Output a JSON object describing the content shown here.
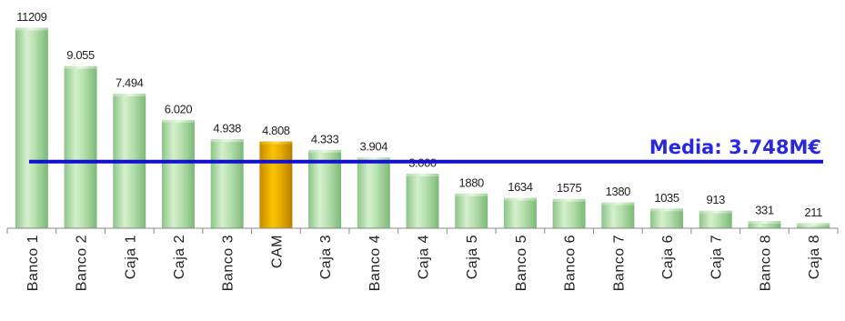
{
  "chart_data": {
    "type": "bar",
    "categories": [
      "Banco 1",
      "Banco 2",
      "Caja 1",
      "Caja 2",
      "Banco 3",
      "CAM",
      "Caja 3",
      "Banco 4",
      "Caja 4",
      "Caja 5",
      "Banco 5",
      "Banco 6",
      "Banco 7",
      "Caja 6",
      "Caja 7",
      "Banco 8",
      "Caja 8"
    ],
    "values": [
      11209,
      9055,
      7494,
      6020,
      4938,
      4808,
      4333,
      3904,
      3000,
      1880,
      1634,
      1575,
      1380,
      1035,
      913,
      331,
      211
    ],
    "value_labels": [
      "11209",
      "9.055",
      "7.494",
      "6.020",
      "4.938",
      "4.808",
      "4.333",
      "3.904",
      "3.000",
      "1880",
      "1634",
      "1575",
      "1380",
      "1035",
      "913",
      "331",
      "211"
    ],
    "highlight_category": "CAM",
    "colors": {
      "bar": "#a8d8a0",
      "highlight": "#e8a800",
      "reference_line": "#1010d0"
    },
    "reference_line": {
      "value": 3748,
      "label": "Media: 3.748M€"
    },
    "title": "",
    "xlabel": "",
    "ylabel": "",
    "ylim": [
      0,
      11209
    ],
    "grid": false,
    "legend": "none"
  }
}
